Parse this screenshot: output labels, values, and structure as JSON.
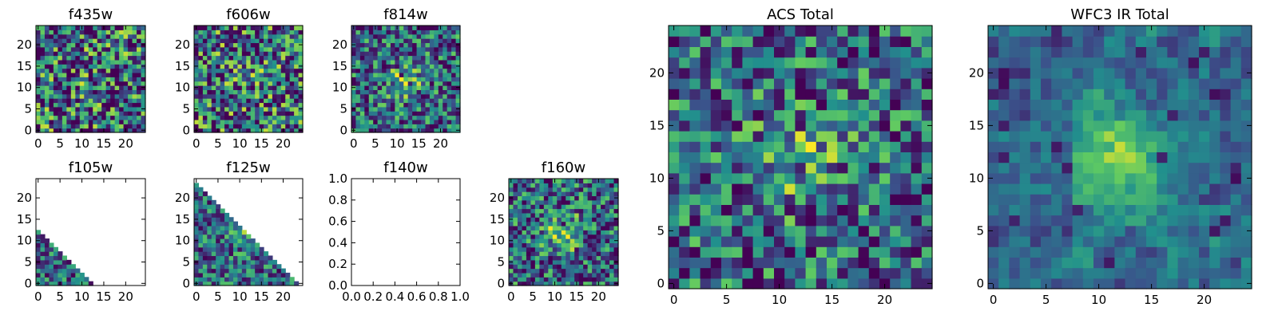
{
  "figure": {
    "colormap": [
      "#440154",
      "#3b528b",
      "#21908d",
      "#5dc963",
      "#fde725"
    ]
  },
  "chart_data": [
    {
      "id": "f435w",
      "type": "heatmap",
      "title": "f435w",
      "grid_size": 25,
      "xlim": [
        0,
        25
      ],
      "ylim": [
        0,
        25
      ],
      "xticks": [
        0,
        5,
        10,
        15,
        20
      ],
      "yticks": [
        0,
        5,
        10,
        15,
        20
      ],
      "xtick_labels": [
        "0",
        "5",
        "10",
        "15",
        "20"
      ],
      "ytick_labels": [
        "0",
        "5",
        "10",
        "15",
        "20"
      ],
      "pattern": "noise",
      "source_peak": 0.05,
      "noise_level": 0.95,
      "footprint": "full"
    },
    {
      "id": "f606w",
      "type": "heatmap",
      "title": "f606w",
      "grid_size": 25,
      "xlim": [
        0,
        25
      ],
      "ylim": [
        0,
        25
      ],
      "xticks": [
        0,
        5,
        10,
        15,
        20
      ],
      "yticks": [
        0,
        5,
        10,
        15,
        20
      ],
      "xtick_labels": [
        "0",
        "5",
        "10",
        "15",
        "20"
      ],
      "ytick_labels": [
        "0",
        "5",
        "10",
        "15",
        "20"
      ],
      "pattern": "noise",
      "source_peak": 0.05,
      "noise_level": 0.95,
      "footprint": "full"
    },
    {
      "id": "f814w",
      "type": "heatmap",
      "title": "f814w",
      "grid_size": 25,
      "xlim": [
        0,
        25
      ],
      "ylim": [
        0,
        25
      ],
      "xticks": [
        0,
        5,
        10,
        15,
        20
      ],
      "yticks": [
        0,
        5,
        10,
        15,
        20
      ],
      "xtick_labels": [
        "0",
        "5",
        "10",
        "15",
        "20"
      ],
      "ytick_labels": [
        "0",
        "5",
        "10",
        "15",
        "20"
      ],
      "pattern": "noise_with_center_source",
      "source_peak": 0.35,
      "noise_level": 0.7,
      "footprint": "full"
    },
    {
      "id": "f105w",
      "type": "heatmap",
      "title": "f105w",
      "grid_size": 25,
      "xlim": [
        0,
        25
      ],
      "ylim": [
        0,
        25
      ],
      "xticks": [
        0,
        5,
        10,
        15,
        20
      ],
      "yticks": [
        0,
        5,
        10,
        15,
        20
      ],
      "xtick_labels": [
        "0",
        "5",
        "10",
        "15",
        "20"
      ],
      "ytick_labels": [
        "0",
        "5",
        "10",
        "15",
        "20"
      ],
      "pattern": "partial_coverage",
      "source_peak": 0.3,
      "noise_level": 0.6,
      "footprint": "lower_left_triangle",
      "coverage_diagonal": 12.5
    },
    {
      "id": "f125w",
      "type": "heatmap",
      "title": "f125w",
      "grid_size": 25,
      "xlim": [
        0,
        25
      ],
      "ylim": [
        0,
        25
      ],
      "xticks": [
        0,
        5,
        10,
        15,
        20
      ],
      "yticks": [
        0,
        5,
        10,
        15,
        20
      ],
      "xtick_labels": [
        "0",
        "5",
        "10",
        "15",
        "20"
      ],
      "ytick_labels": [
        "0",
        "5",
        "10",
        "15",
        "20"
      ],
      "pattern": "partial_coverage",
      "source_peak": 0.3,
      "noise_level": 0.6,
      "footprint": "lower_left_triangle",
      "coverage_diagonal": 23.5
    },
    {
      "id": "f140w",
      "type": "heatmap",
      "title": "f140w",
      "empty": true,
      "xlim": [
        0,
        1
      ],
      "ylim": [
        0,
        1
      ],
      "xticks": [
        0,
        0.2,
        0.4,
        0.6,
        0.8,
        1.0
      ],
      "yticks": [
        0,
        0.2,
        0.4,
        0.6,
        0.8,
        1.0
      ],
      "xtick_labels": [
        "0.0",
        "0.2",
        "0.4",
        "0.6",
        "0.8",
        "1.0"
      ],
      "ytick_labels": [
        "0.0",
        "0.2",
        "0.4",
        "0.6",
        "0.8",
        "1.0"
      ]
    },
    {
      "id": "f160w",
      "type": "heatmap",
      "title": "f160w",
      "grid_size": 25,
      "xlim": [
        0,
        25
      ],
      "ylim": [
        0,
        25
      ],
      "xticks": [
        0,
        5,
        10,
        15,
        20
      ],
      "yticks": [
        0,
        5,
        10,
        15,
        20
      ],
      "xtick_labels": [
        "0",
        "5",
        "10",
        "15",
        "20"
      ],
      "ytick_labels": [
        "0",
        "5",
        "10",
        "15",
        "20"
      ],
      "pattern": "noise_with_center_source",
      "source_peak": 0.45,
      "noise_level": 0.7,
      "footprint": "full"
    },
    {
      "id": "acs_total",
      "type": "heatmap",
      "title": "ACS Total",
      "grid_size": 25,
      "xlim": [
        0,
        25
      ],
      "ylim": [
        0,
        25
      ],
      "xticks": [
        0,
        5,
        10,
        15,
        20
      ],
      "yticks": [
        0,
        5,
        10,
        15,
        20
      ],
      "xtick_labels": [
        "0",
        "5",
        "10",
        "15",
        "20"
      ],
      "ytick_labels": [
        "0",
        "5",
        "10",
        "15",
        "20"
      ],
      "pattern": "noise_with_center_source",
      "source_peak": 0.3,
      "noise_level": 0.7,
      "footprint": "full"
    },
    {
      "id": "wfc3_ir_total",
      "type": "heatmap",
      "title": "WFC3 IR Total",
      "grid_size": 25,
      "xlim": [
        0,
        25
      ],
      "ylim": [
        0,
        25
      ],
      "xticks": [
        0,
        5,
        10,
        15,
        20
      ],
      "yticks": [
        0,
        5,
        10,
        15,
        20
      ],
      "xtick_labels": [
        "0",
        "5",
        "10",
        "15",
        "20"
      ],
      "ytick_labels": [
        "0",
        "5",
        "10",
        "15",
        "20"
      ],
      "pattern": "smooth_with_center_source",
      "source_peak": 0.5,
      "noise_level": 0.45,
      "footprint": "full"
    }
  ]
}
